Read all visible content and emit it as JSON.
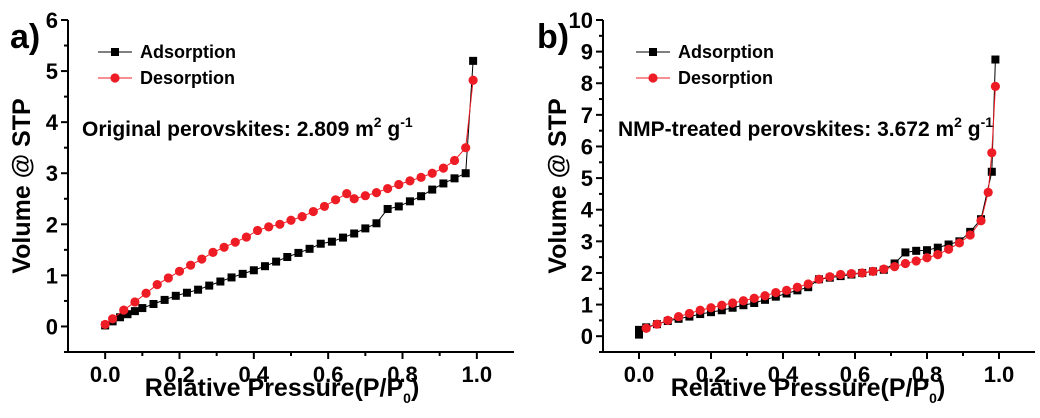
{
  "chart_data": [
    {
      "type": "scatter",
      "panel_label": "a)",
      "xlabel": "Relative Pressure(P/P",
      "xlabel_sub": "0",
      "xlabel_end": ")",
      "ylabel": "Volume @ STP",
      "xlim": [
        -0.1,
        1.1
      ],
      "ylim": [
        -0.5,
        6
      ],
      "xticks": [
        "0.0",
        "0.2",
        "0.4",
        "0.6",
        "0.8",
        "1.0"
      ],
      "yticks": [
        "0",
        "1",
        "2",
        "3",
        "4",
        "5",
        "6"
      ],
      "legend_position": "top-left",
      "annotation": {
        "text": "Original perovskites: 2.809 m",
        "sup1": "2",
        "mid": " g",
        "sup2": "-1"
      },
      "series": [
        {
          "name": "Adsorption",
          "marker": "square",
          "color": "#000000",
          "x": [
            0.0,
            0.02,
            0.04,
            0.06,
            0.08,
            0.1,
            0.13,
            0.16,
            0.19,
            0.22,
            0.25,
            0.28,
            0.31,
            0.34,
            0.37,
            0.4,
            0.43,
            0.46,
            0.49,
            0.52,
            0.55,
            0.58,
            0.61,
            0.64,
            0.67,
            0.7,
            0.73,
            0.76,
            0.79,
            0.82,
            0.85,
            0.88,
            0.91,
            0.94,
            0.97,
            0.99
          ],
          "y": [
            0.02,
            0.1,
            0.18,
            0.24,
            0.3,
            0.36,
            0.44,
            0.52,
            0.6,
            0.66,
            0.72,
            0.8,
            0.88,
            0.96,
            1.03,
            1.1,
            1.18,
            1.27,
            1.36,
            1.44,
            1.52,
            1.62,
            1.66,
            1.74,
            1.82,
            1.92,
            2.02,
            2.3,
            2.35,
            2.45,
            2.55,
            2.68,
            2.8,
            2.9,
            3.0,
            5.2
          ]
        },
        {
          "name": "Desorption",
          "marker": "circle",
          "color": "#ee1c24",
          "x": [
            0.99,
            0.97,
            0.94,
            0.91,
            0.88,
            0.85,
            0.82,
            0.79,
            0.76,
            0.73,
            0.7,
            0.67,
            0.65,
            0.62,
            0.59,
            0.56,
            0.53,
            0.5,
            0.47,
            0.44,
            0.41,
            0.38,
            0.35,
            0.32,
            0.29,
            0.26,
            0.23,
            0.2,
            0.17,
            0.14,
            0.11,
            0.08,
            0.05,
            0.02,
            0.0
          ],
          "y": [
            4.82,
            3.5,
            3.25,
            3.1,
            3.0,
            2.92,
            2.85,
            2.78,
            2.7,
            2.62,
            2.56,
            2.5,
            2.6,
            2.48,
            2.35,
            2.25,
            2.15,
            2.08,
            2.0,
            1.95,
            1.88,
            1.75,
            1.65,
            1.55,
            1.45,
            1.32,
            1.2,
            1.08,
            0.95,
            0.82,
            0.65,
            0.48,
            0.32,
            0.15,
            0.04
          ]
        }
      ]
    },
    {
      "type": "scatter",
      "panel_label": "b)",
      "xlabel": "Relative Pressure(P/P",
      "xlabel_sub": "0",
      "xlabel_end": ")",
      "ylabel": "Volume @ STP",
      "xlim": [
        -0.1,
        1.1
      ],
      "ylim": [
        -0.5,
        10
      ],
      "xticks": [
        "0.0",
        "0.2",
        "0.4",
        "0.6",
        "0.8",
        "1.0"
      ],
      "yticks": [
        "0",
        "1",
        "2",
        "3",
        "4",
        "5",
        "6",
        "7",
        "8",
        "9",
        "10"
      ],
      "legend_position": "top-left",
      "annotation": {
        "text": "NMP-treated perovskites: 3.672 m",
        "sup1": "2",
        "mid": " g",
        "sup2": "-1"
      },
      "series": [
        {
          "name": "Adsorption",
          "marker": "square",
          "color": "#000000",
          "x": [
            0.0,
            0.0,
            0.02,
            0.05,
            0.08,
            0.11,
            0.14,
            0.17,
            0.2,
            0.23,
            0.26,
            0.29,
            0.32,
            0.35,
            0.38,
            0.41,
            0.44,
            0.47,
            0.5,
            0.53,
            0.56,
            0.59,
            0.62,
            0.65,
            0.68,
            0.71,
            0.74,
            0.77,
            0.8,
            0.83,
            0.86,
            0.89,
            0.92,
            0.95,
            0.98,
            0.99
          ],
          "y": [
            0.05,
            0.2,
            0.28,
            0.38,
            0.48,
            0.55,
            0.62,
            0.7,
            0.76,
            0.82,
            0.9,
            0.98,
            1.05,
            1.15,
            1.25,
            1.35,
            1.45,
            1.55,
            1.8,
            1.85,
            1.9,
            1.95,
            2.0,
            2.05,
            2.1,
            2.3,
            2.65,
            2.7,
            2.72,
            2.8,
            2.9,
            3.0,
            3.3,
            3.7,
            5.2,
            8.75
          ]
        },
        {
          "name": "Desorption",
          "marker": "circle",
          "color": "#ee1c24",
          "x": [
            0.99,
            0.98,
            0.97,
            0.95,
            0.92,
            0.89,
            0.86,
            0.83,
            0.8,
            0.77,
            0.74,
            0.71,
            0.68,
            0.65,
            0.62,
            0.59,
            0.56,
            0.53,
            0.5,
            0.47,
            0.44,
            0.41,
            0.38,
            0.35,
            0.32,
            0.29,
            0.26,
            0.23,
            0.2,
            0.17,
            0.14,
            0.11,
            0.08,
            0.05,
            0.02
          ],
          "y": [
            7.9,
            5.8,
            4.55,
            3.65,
            3.2,
            2.95,
            2.75,
            2.58,
            2.48,
            2.38,
            2.3,
            2.2,
            2.12,
            2.05,
            2.0,
            1.98,
            1.95,
            1.88,
            1.8,
            1.65,
            1.55,
            1.45,
            1.38,
            1.28,
            1.2,
            1.12,
            1.05,
            0.98,
            0.9,
            0.82,
            0.72,
            0.62,
            0.5,
            0.38,
            0.25
          ]
        }
      ]
    }
  ]
}
